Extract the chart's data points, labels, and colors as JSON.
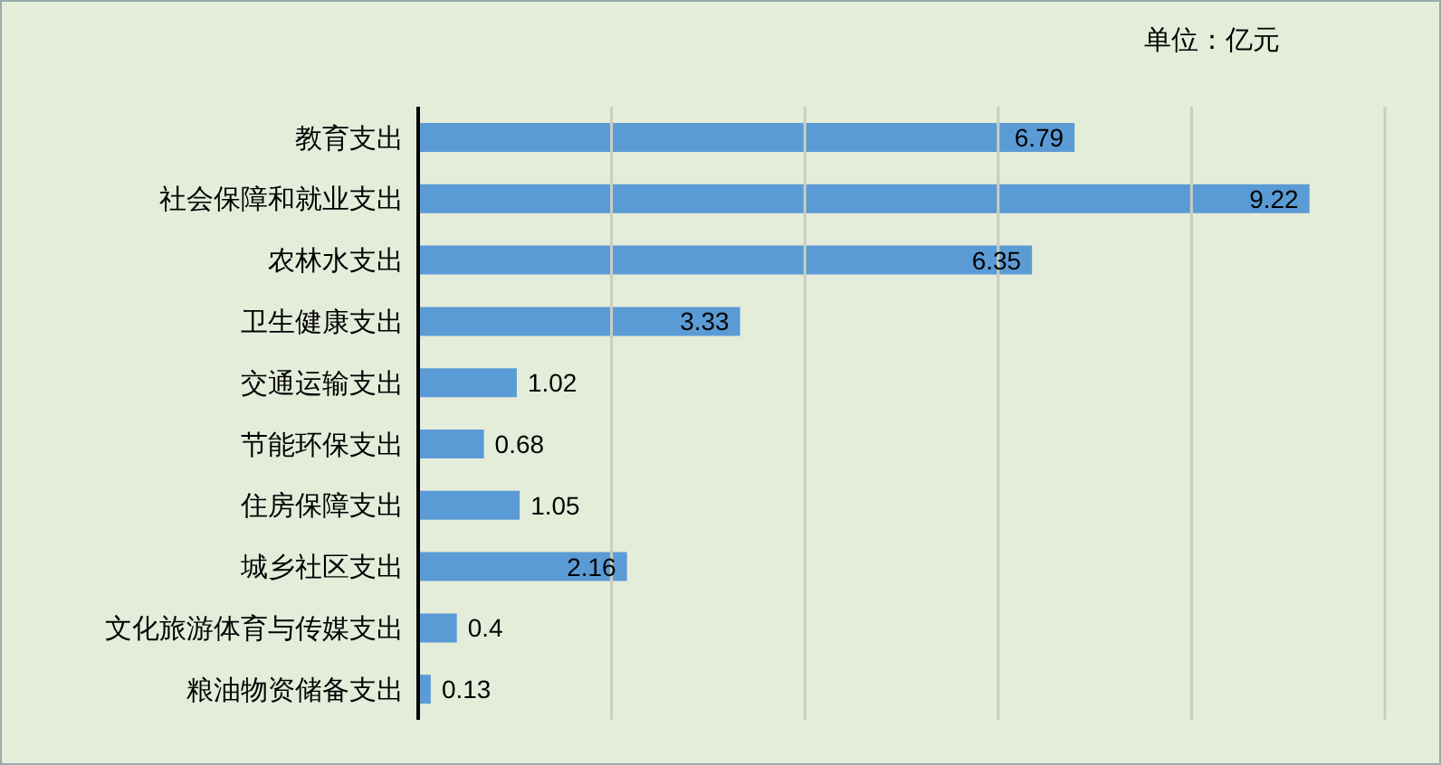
{
  "chart_data": {
    "type": "bar",
    "orientation": "horizontal",
    "annotations": [
      "单位：亿元"
    ],
    "categories": [
      "教育支出",
      "社会保障和就业支出",
      "农林水支出",
      "卫生健康支出",
      "交通运输支出",
      "节能环保支出",
      "住房保障支出",
      "城乡社区支出",
      "文化旅游体育与传媒支出",
      "粮油物资储备支出"
    ],
    "values": [
      6.79,
      9.22,
      6.35,
      3.33,
      1.02,
      0.68,
      1.05,
      2.16,
      0.4,
      0.13
    ],
    "color": "#5b9bd5",
    "data_labels": true,
    "grid": "x",
    "tick_labels": "y",
    "xlim": [
      0,
      10
    ],
    "xticks": [
      {
        "value": 0,
        "label": null
      },
      {
        "value": 2,
        "label": null
      },
      {
        "value": 4,
        "label": null
      },
      {
        "value": 6,
        "label": null
      },
      {
        "value": 8,
        "label": null
      },
      {
        "value": 10,
        "label": null
      }
    ]
  }
}
